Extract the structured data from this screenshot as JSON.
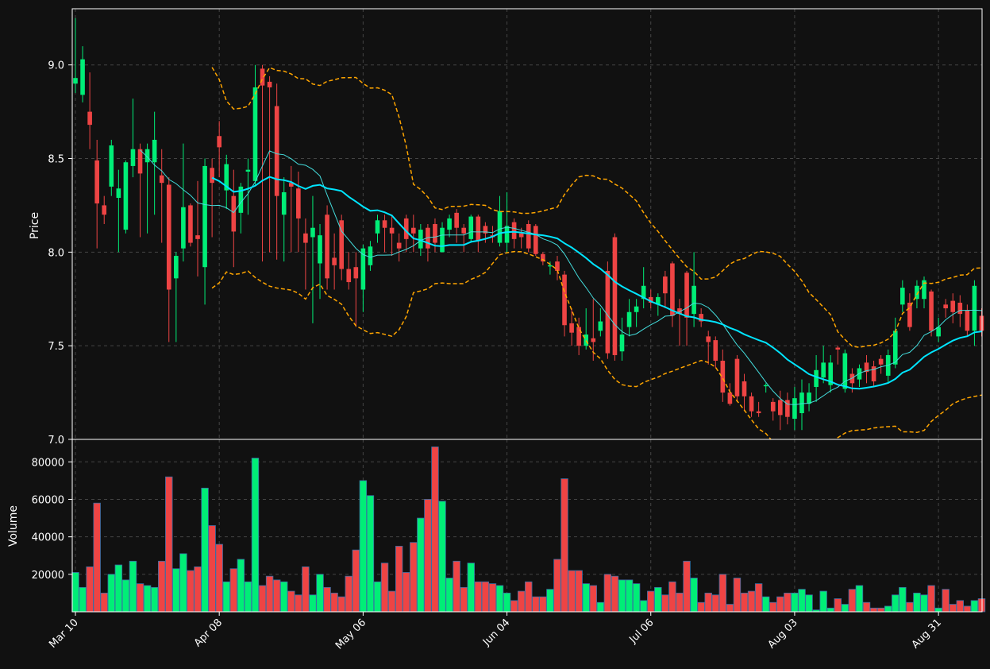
{
  "chart_data": {
    "type": "candlestick",
    "ylabel_price": "Price",
    "ylabel_volume": "Volume",
    "price_ylim": [
      7.0,
      9.3
    ],
    "volume_ylim": [
      0,
      92000
    ],
    "price_yticks": [
      "7.0",
      "7.5",
      "8.0",
      "8.5",
      "9.0"
    ],
    "volume_yticks": [
      "20000",
      "40000",
      "60000",
      "80000"
    ],
    "xtick_labels": [
      "Mar 10",
      "Apr 08",
      "May 06",
      "Jun 04",
      "Jul 06",
      "Aug 03",
      "Aug 31"
    ],
    "xtick_index": [
      0,
      20,
      40,
      60,
      80,
      100,
      120
    ],
    "grid": true,
    "colors": {
      "up": "#00ee77",
      "down": "#ee4444",
      "ma_fast": "#44dddd",
      "ma_slow": "#00e5ff",
      "bollinger": "#ffa500",
      "background": "#111111",
      "frame": "#ffffff"
    },
    "ma_fast_window": 10,
    "ma_slow_window": 20,
    "bollinger_window": 20,
    "bollinger_k": 2,
    "candles": [
      [
        8.9,
        8.93,
        9.25,
        8.85,
        21000
      ],
      [
        8.84,
        9.03,
        9.1,
        8.8,
        13000
      ],
      [
        8.75,
        8.68,
        8.96,
        8.55,
        24000
      ],
      [
        8.49,
        8.26,
        8.6,
        8.02,
        58000
      ],
      [
        8.25,
        8.2,
        8.3,
        8.15,
        10000
      ],
      [
        8.35,
        8.57,
        8.6,
        8.3,
        20000
      ],
      [
        8.29,
        8.34,
        8.44,
        8.0,
        25000
      ],
      [
        8.12,
        8.48,
        8.49,
        8.1,
        17000
      ],
      [
        8.46,
        8.55,
        8.82,
        8.4,
        27000
      ],
      [
        8.55,
        8.42,
        8.58,
        8.08,
        15000
      ],
      [
        8.48,
        8.55,
        8.58,
        8.1,
        14000
      ],
      [
        8.48,
        8.6,
        8.75,
        8.2,
        13000
      ],
      [
        8.41,
        8.37,
        8.55,
        8.05,
        27000
      ],
      [
        8.36,
        7.8,
        8.4,
        7.52,
        72000
      ],
      [
        7.86,
        7.98,
        8.0,
        7.52,
        23000
      ],
      [
        8.02,
        8.24,
        8.58,
        7.95,
        31000
      ],
      [
        8.25,
        8.05,
        8.26,
        8.03,
        22000
      ],
      [
        8.09,
        8.07,
        8.38,
        7.87,
        24000
      ],
      [
        7.92,
        8.46,
        8.5,
        7.72,
        66000
      ],
      [
        8.45,
        8.37,
        8.5,
        8.08,
        46000
      ],
      [
        8.62,
        8.56,
        8.7,
        8.4,
        36000
      ],
      [
        8.33,
        8.47,
        8.52,
        8.23,
        16000
      ],
      [
        8.3,
        8.11,
        8.44,
        7.92,
        23000
      ],
      [
        8.21,
        8.35,
        8.37,
        8.1,
        28000
      ],
      [
        8.43,
        8.44,
        8.5,
        8.2,
        16000
      ],
      [
        8.38,
        8.88,
        9.0,
        8.36,
        82000
      ],
      [
        8.98,
        8.89,
        9.0,
        7.95,
        14000
      ],
      [
        8.91,
        8.88,
        8.94,
        8.0,
        19000
      ],
      [
        8.78,
        8.3,
        8.9,
        7.96,
        17000
      ],
      [
        8.2,
        8.32,
        8.4,
        7.95,
        16000
      ],
      [
        8.37,
        8.35,
        8.46,
        8.0,
        11000
      ],
      [
        8.34,
        8.18,
        8.43,
        8.0,
        9000
      ],
      [
        8.1,
        8.05,
        8.18,
        7.8,
        24000
      ],
      [
        8.08,
        8.13,
        8.3,
        7.62,
        9000
      ],
      [
        7.94,
        8.09,
        8.15,
        7.75,
        20000
      ],
      [
        8.2,
        7.86,
        8.25,
        7.8,
        13000
      ],
      [
        7.97,
        7.93,
        8.1,
        7.8,
        10000
      ],
      [
        8.17,
        7.91,
        8.2,
        7.85,
        8000
      ],
      [
        7.91,
        7.84,
        8.0,
        7.8,
        19000
      ],
      [
        7.92,
        7.86,
        8.0,
        7.6,
        33000
      ],
      [
        7.8,
        8.02,
        8.04,
        7.68,
        70000
      ],
      [
        7.93,
        8.03,
        8.06,
        7.9,
        62000
      ],
      [
        8.1,
        8.17,
        8.2,
        8.05,
        16000
      ],
      [
        8.17,
        8.13,
        8.2,
        8.0,
        26000
      ],
      [
        8.13,
        8.1,
        8.2,
        7.98,
        11000
      ],
      [
        8.05,
        8.02,
        8.1,
        7.95,
        35000
      ],
      [
        8.18,
        8.07,
        8.2,
        8.0,
        21000
      ],
      [
        8.13,
        8.1,
        8.2,
        8.0,
        37000
      ],
      [
        8.02,
        8.12,
        8.15,
        7.98,
        50000
      ],
      [
        8.13,
        8.02,
        8.15,
        7.95,
        60000
      ],
      [
        8.15,
        8.05,
        8.18,
        8.0,
        88000
      ],
      [
        8.0,
        8.13,
        8.16,
        8.0,
        59000
      ],
      [
        8.12,
        8.18,
        8.2,
        8.08,
        18000
      ],
      [
        8.21,
        8.13,
        8.23,
        8.05,
        27000
      ],
      [
        8.13,
        8.1,
        8.15,
        8.0,
        13000
      ],
      [
        8.07,
        8.19,
        8.2,
        8.05,
        26000
      ],
      [
        8.19,
        8.06,
        8.2,
        8.0,
        16000
      ],
      [
        8.14,
        8.1,
        8.16,
        8.05,
        16000
      ],
      [
        8.09,
        8.08,
        8.14,
        8.05,
        15000
      ],
      [
        8.05,
        8.22,
        8.3,
        8.03,
        14000
      ],
      [
        8.05,
        8.14,
        8.32,
        8.0,
        10000
      ],
      [
        8.16,
        8.07,
        8.18,
        8.02,
        6000
      ],
      [
        8.1,
        8.08,
        8.13,
        8.02,
        11000
      ],
      [
        8.15,
        8.02,
        8.17,
        8.0,
        16000
      ],
      [
        8.14,
        7.99,
        8.15,
        7.98,
        8000
      ],
      [
        7.99,
        7.95,
        8.0,
        7.93,
        8000
      ],
      [
        7.93,
        7.93,
        7.95,
        7.88,
        12000
      ],
      [
        7.95,
        7.9,
        7.98,
        7.85,
        28000
      ],
      [
        7.88,
        7.61,
        7.9,
        7.55,
        71000
      ],
      [
        7.62,
        7.57,
        7.7,
        7.5,
        22000
      ],
      [
        7.6,
        7.5,
        7.65,
        7.45,
        22000
      ],
      [
        7.5,
        7.56,
        7.7,
        7.48,
        15000
      ],
      [
        7.54,
        7.52,
        7.75,
        7.42,
        14000
      ],
      [
        7.58,
        7.63,
        7.7,
        7.55,
        5000
      ],
      [
        7.9,
        7.46,
        7.95,
        7.43,
        20000
      ],
      [
        8.08,
        7.45,
        8.1,
        7.42,
        19000
      ],
      [
        7.47,
        7.56,
        7.65,
        7.42,
        17000
      ],
      [
        7.6,
        7.68,
        7.75,
        7.55,
        17000
      ],
      [
        7.68,
        7.71,
        7.75,
        7.6,
        15000
      ],
      [
        7.75,
        7.82,
        7.92,
        7.7,
        6000
      ],
      [
        7.76,
        7.73,
        7.8,
        7.7,
        11000
      ],
      [
        7.72,
        7.76,
        7.78,
        7.66,
        13000
      ],
      [
        7.87,
        7.78,
        7.9,
        7.7,
        9000
      ],
      [
        7.94,
        7.66,
        7.95,
        7.6,
        16000
      ],
      [
        7.7,
        7.67,
        7.75,
        7.5,
        10000
      ],
      [
        7.89,
        7.65,
        7.9,
        7.5,
        27000
      ],
      [
        7.67,
        7.82,
        8.0,
        7.6,
        18000
      ],
      [
        7.67,
        7.63,
        7.7,
        7.6,
        5000
      ],
      [
        7.55,
        7.52,
        7.58,
        7.4,
        10000
      ],
      [
        7.53,
        7.42,
        7.55,
        7.38,
        9000
      ],
      [
        7.42,
        7.25,
        7.48,
        7.2,
        20000
      ],
      [
        7.25,
        7.19,
        7.3,
        7.18,
        4000
      ],
      [
        7.43,
        7.23,
        7.45,
        7.2,
        18000
      ],
      [
        7.31,
        7.23,
        7.35,
        7.15,
        10000
      ],
      [
        7.23,
        7.15,
        7.25,
        7.12,
        11000
      ],
      [
        7.15,
        7.14,
        7.2,
        7.12,
        15000
      ],
      [
        7.29,
        7.29,
        7.3,
        7.25,
        8000
      ],
      [
        7.2,
        7.15,
        7.22,
        7.1,
        5000
      ],
      [
        7.21,
        7.13,
        7.26,
        7.05,
        8000
      ],
      [
        7.21,
        7.12,
        7.25,
        7.08,
        10000
      ],
      [
        7.11,
        7.22,
        7.28,
        7.05,
        10000
      ],
      [
        7.14,
        7.25,
        7.32,
        7.05,
        12000
      ],
      [
        7.19,
        7.25,
        7.3,
        7.15,
        9000
      ],
      [
        7.28,
        7.37,
        7.45,
        7.2,
        1000
      ],
      [
        7.33,
        7.41,
        7.5,
        7.3,
        11000
      ],
      [
        7.29,
        7.41,
        7.45,
        7.25,
        2000
      ],
      [
        7.49,
        7.48,
        7.5,
        7.4,
        7000
      ],
      [
        7.27,
        7.46,
        7.48,
        7.25,
        4000
      ],
      [
        7.35,
        7.3,
        7.38,
        7.25,
        12000
      ],
      [
        7.32,
        7.38,
        7.4,
        7.28,
        14000
      ],
      [
        7.41,
        7.36,
        7.45,
        7.3,
        5000
      ],
      [
        7.39,
        7.31,
        7.42,
        7.28,
        2000
      ],
      [
        7.43,
        7.4,
        7.45,
        7.35,
        2000
      ],
      [
        7.34,
        7.45,
        7.48,
        7.3,
        3000
      ],
      [
        7.4,
        7.58,
        7.65,
        7.38,
        9000
      ],
      [
        7.72,
        7.81,
        7.85,
        7.68,
        13000
      ],
      [
        7.73,
        7.6,
        7.78,
        7.58,
        5000
      ],
      [
        7.75,
        7.82,
        7.85,
        7.7,
        10000
      ],
      [
        7.75,
        7.85,
        7.87,
        7.7,
        9000
      ],
      [
        7.79,
        7.58,
        7.8,
        7.55,
        14000
      ],
      [
        7.55,
        7.6,
        7.65,
        7.52,
        2000
      ],
      [
        7.72,
        7.7,
        7.75,
        7.65,
        12000
      ],
      [
        7.74,
        7.68,
        7.78,
        7.62,
        4000
      ],
      [
        7.73,
        7.67,
        7.77,
        7.6,
        6000
      ],
      [
        7.69,
        7.58,
        7.72,
        7.55,
        3000
      ],
      [
        7.58,
        7.82,
        7.85,
        7.5,
        6000
      ],
      [
        7.66,
        7.58,
        7.7,
        7.55,
        7000
      ]
    ]
  }
}
